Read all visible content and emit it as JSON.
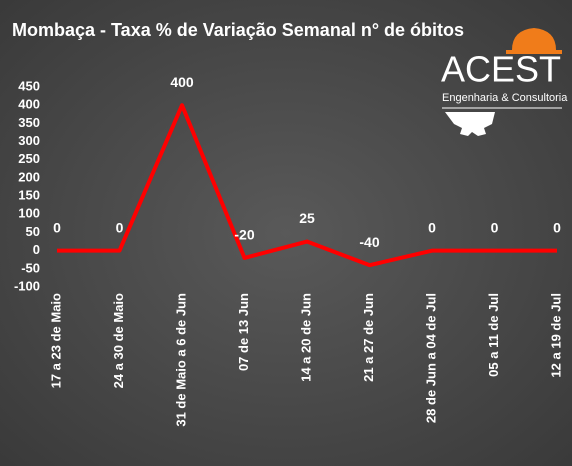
{
  "chart_data": {
    "type": "line",
    "title": "Mombaça - Taxa % de Variação Semanal n° de óbitos",
    "categories": [
      "17 a 23 de Maio",
      "24 a 30 de Maio",
      "31 de Maio a 6 de Jun",
      "07 de 13 Jun",
      "14 a 20 de Jun",
      "21 a 27 de Jun",
      "28 de Jun a 04 de Jul",
      "05 a 11 de Jul",
      "12 a 19 de Jul"
    ],
    "values": [
      0,
      0,
      400,
      -20,
      25,
      -40,
      0,
      0,
      0
    ],
    "color": "#ff0000",
    "ylim": [
      -100,
      450
    ],
    "yticks": [
      -100,
      -50,
      0,
      50,
      100,
      150,
      200,
      250,
      300,
      350,
      400,
      450
    ],
    "grid": false
  },
  "logo": {
    "name": "ACEST",
    "tagline": "Engenharia & Consultoria"
  }
}
